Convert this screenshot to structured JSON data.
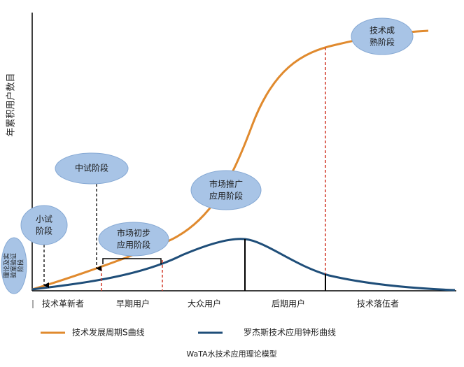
{
  "y_axis_label": "年累积用户数目",
  "stages": [
    {
      "lines": [
        "理论及实",
        "验室验证",
        "阶段"
      ]
    },
    {
      "lines": [
        "小试",
        "阶段"
      ]
    },
    {
      "lines": [
        "中试阶段"
      ]
    },
    {
      "lines": [
        "市场初步",
        "应用阶段"
      ]
    },
    {
      "lines": [
        "市场推广",
        "应用阶段"
      ]
    },
    {
      "lines": [
        "技术成",
        "熟阶段"
      ]
    }
  ],
  "segments": [
    "技术革新者",
    "早期用户",
    "大众用户",
    "后期用户",
    "技术落伍者"
  ],
  "legend": [
    "技术发展周期S曲线",
    "罗杰斯技术应用钟形曲线"
  ],
  "caption": "WaTA水技术应用理论模型"
}
